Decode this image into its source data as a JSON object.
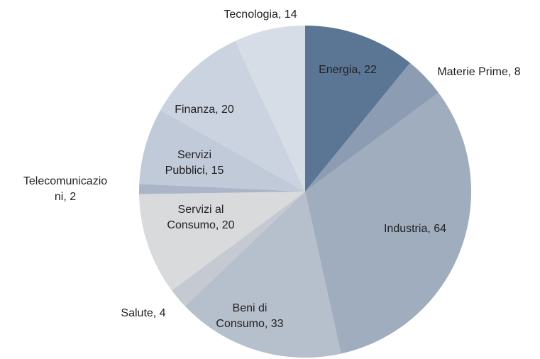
{
  "chart_data": {
    "type": "pie",
    "categories": [
      "Energia, 22",
      "Materie Prime, 8",
      "Industria, 64",
      "Beni di\nConsumo, 33",
      "Salute, 4",
      "Servizi al\nConsumo, 20",
      "Telecomunicazio\nni, 2",
      "Servizi\nPubblici, 15",
      "Finanza, 20",
      "Tecnologia, 14"
    ],
    "values": [
      22,
      8,
      64,
      33,
      4,
      20,
      2,
      15,
      20,
      14
    ],
    "colors": [
      "#5b7594",
      "#8c9db3",
      "#a0adbf",
      "#b6bfcc",
      "#c5cad2",
      "#d9dadc",
      "#aab6c8",
      "#c0cad9",
      "#cbd3e0",
      "#d6dde7"
    ]
  }
}
